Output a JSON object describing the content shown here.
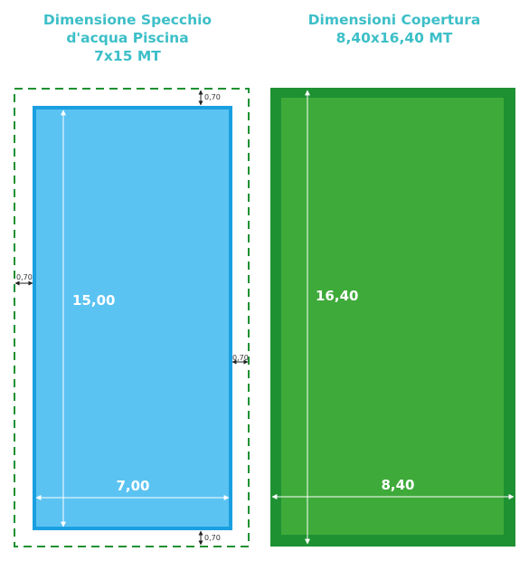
{
  "left": {
    "title": [
      "Dimensione Specchio",
      "d'acqua Piscina",
      "7x15 MT"
    ],
    "height_label": "15,00",
    "width_label": "7,00",
    "margin_labels": [
      "0,70",
      "0,70",
      "0,70",
      "0,70"
    ]
  },
  "right": {
    "title": [
      "Dimensioni Copertura",
      "8,40x16,40 MT"
    ],
    "height_label": "16,40",
    "width_label": "8,40"
  }
}
